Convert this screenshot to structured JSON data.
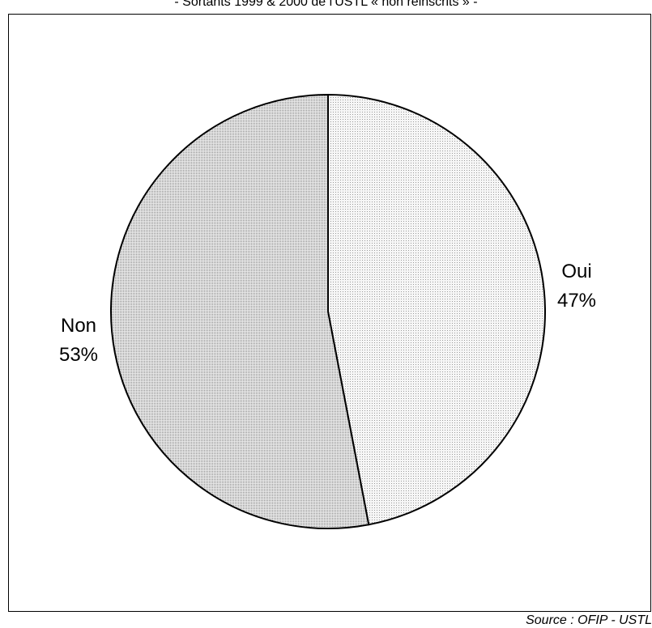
{
  "subtitle": "- Sortants 1999 & 2000 de l'USTL « non réinscrits » -",
  "source": "Source : OFIP - USTL",
  "chart_data": {
    "type": "pie",
    "slices": [
      {
        "label": "Oui",
        "value": 47,
        "value_label": "47%",
        "color": "#ececec"
      },
      {
        "label": "Non",
        "value": 53,
        "value_label": "53%",
        "color": "#d8d8d8"
      }
    ],
    "start": "12 o'clock",
    "direction": "clockwise"
  }
}
